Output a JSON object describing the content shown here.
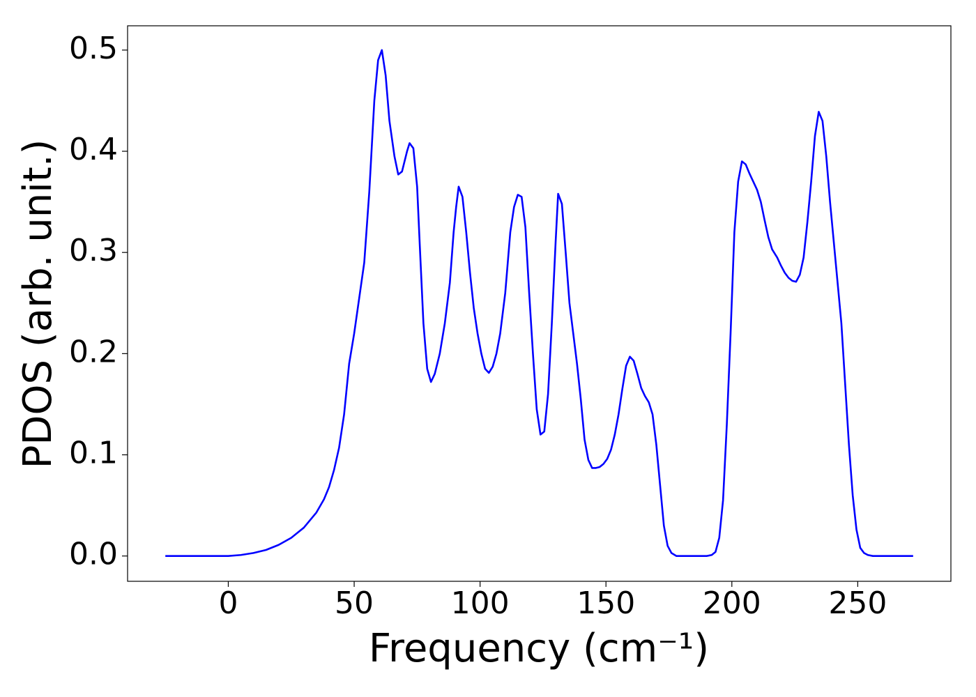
{
  "chart_data": {
    "type": "line",
    "xlabel": "Frequency (cm⁻¹)",
    "ylabel": "PDOS (arb. unit.)",
    "x": [
      -25,
      0,
      5,
      10,
      15,
      20,
      25,
      30,
      35,
      38,
      40,
      42,
      44,
      46,
      48,
      50,
      52,
      54,
      56,
      58,
      59.5,
      61,
      62.5,
      64,
      66,
      67.5,
      69,
      71,
      72,
      73.5,
      75,
      76,
      77.5,
      79,
      80.5,
      82,
      84,
      86,
      88,
      89.5,
      90.5,
      91.5,
      93,
      94.5,
      96,
      97.5,
      99,
      100.5,
      102,
      103.5,
      105,
      106.5,
      108,
      110,
      112,
      113.5,
      115,
      116.5,
      118,
      119.5,
      121,
      122.5,
      124,
      125.5,
      127,
      128.5,
      130,
      131,
      132.5,
      134,
      135.5,
      137,
      138.5,
      140,
      141.5,
      143,
      144.5,
      146,
      147.5,
      149,
      150.5,
      152,
      153.5,
      155,
      156.5,
      158,
      159.5,
      161,
      162.5,
      164,
      165.5,
      167,
      168.5,
      170,
      171.5,
      173,
      174.5,
      176,
      178,
      190,
      192,
      193.5,
      195,
      196.5,
      198,
      199.5,
      201,
      202.5,
      204,
      205.5,
      207,
      208.5,
      210,
      211.5,
      213,
      214.5,
      216,
      218,
      219.5,
      221,
      222.5,
      224,
      225.5,
      227,
      228.5,
      230,
      231.5,
      233,
      234.5,
      236,
      237.5,
      239,
      240.5,
      242,
      243.5,
      245,
      246.5,
      248,
      249.5,
      251,
      252.5,
      254,
      256,
      272
    ],
    "series": [
      {
        "name": "PDOS",
        "color": "#0000ff",
        "values": [
          0,
          0,
          0.001,
          0.003,
          0.006,
          0.011,
          0.018,
          0.028,
          0.043,
          0.056,
          0.068,
          0.085,
          0.107,
          0.14,
          0.19,
          0.22,
          0.255,
          0.29,
          0.36,
          0.45,
          0.49,
          0.5,
          0.475,
          0.43,
          0.395,
          0.377,
          0.38,
          0.4,
          0.408,
          0.403,
          0.365,
          0.31,
          0.23,
          0.185,
          0.172,
          0.18,
          0.2,
          0.23,
          0.27,
          0.32,
          0.345,
          0.365,
          0.355,
          0.32,
          0.28,
          0.245,
          0.22,
          0.2,
          0.185,
          0.181,
          0.187,
          0.2,
          0.22,
          0.26,
          0.32,
          0.345,
          0.357,
          0.355,
          0.325,
          0.26,
          0.2,
          0.145,
          0.12,
          0.123,
          0.16,
          0.23,
          0.31,
          0.358,
          0.348,
          0.3,
          0.25,
          0.22,
          0.19,
          0.155,
          0.115,
          0.095,
          0.087,
          0.087,
          0.088,
          0.091,
          0.096,
          0.105,
          0.12,
          0.14,
          0.165,
          0.188,
          0.197,
          0.193,
          0.18,
          0.166,
          0.158,
          0.152,
          0.14,
          0.11,
          0.07,
          0.03,
          0.01,
          0.003,
          0,
          0,
          0.001,
          0.004,
          0.018,
          0.055,
          0.13,
          0.22,
          0.32,
          0.37,
          0.39,
          0.387,
          0.378,
          0.37,
          0.362,
          0.35,
          0.332,
          0.315,
          0.303,
          0.295,
          0.287,
          0.28,
          0.275,
          0.272,
          0.271,
          0.278,
          0.295,
          0.33,
          0.37,
          0.415,
          0.439,
          0.43,
          0.395,
          0.35,
          0.31,
          0.27,
          0.23,
          0.17,
          0.11,
          0.06,
          0.026,
          0.008,
          0.003,
          0.001,
          0,
          0
        ]
      }
    ],
    "xlim": [
      -40,
      287
    ],
    "ylim": [
      -0.025,
      0.524
    ],
    "xticks": [
      0,
      50,
      100,
      150,
      200,
      250
    ],
    "yticks": [
      {
        "value": 0,
        "label": "0.0"
      },
      0.1,
      0.2,
      0.3,
      0.4,
      0.5
    ],
    "grid": false
  }
}
